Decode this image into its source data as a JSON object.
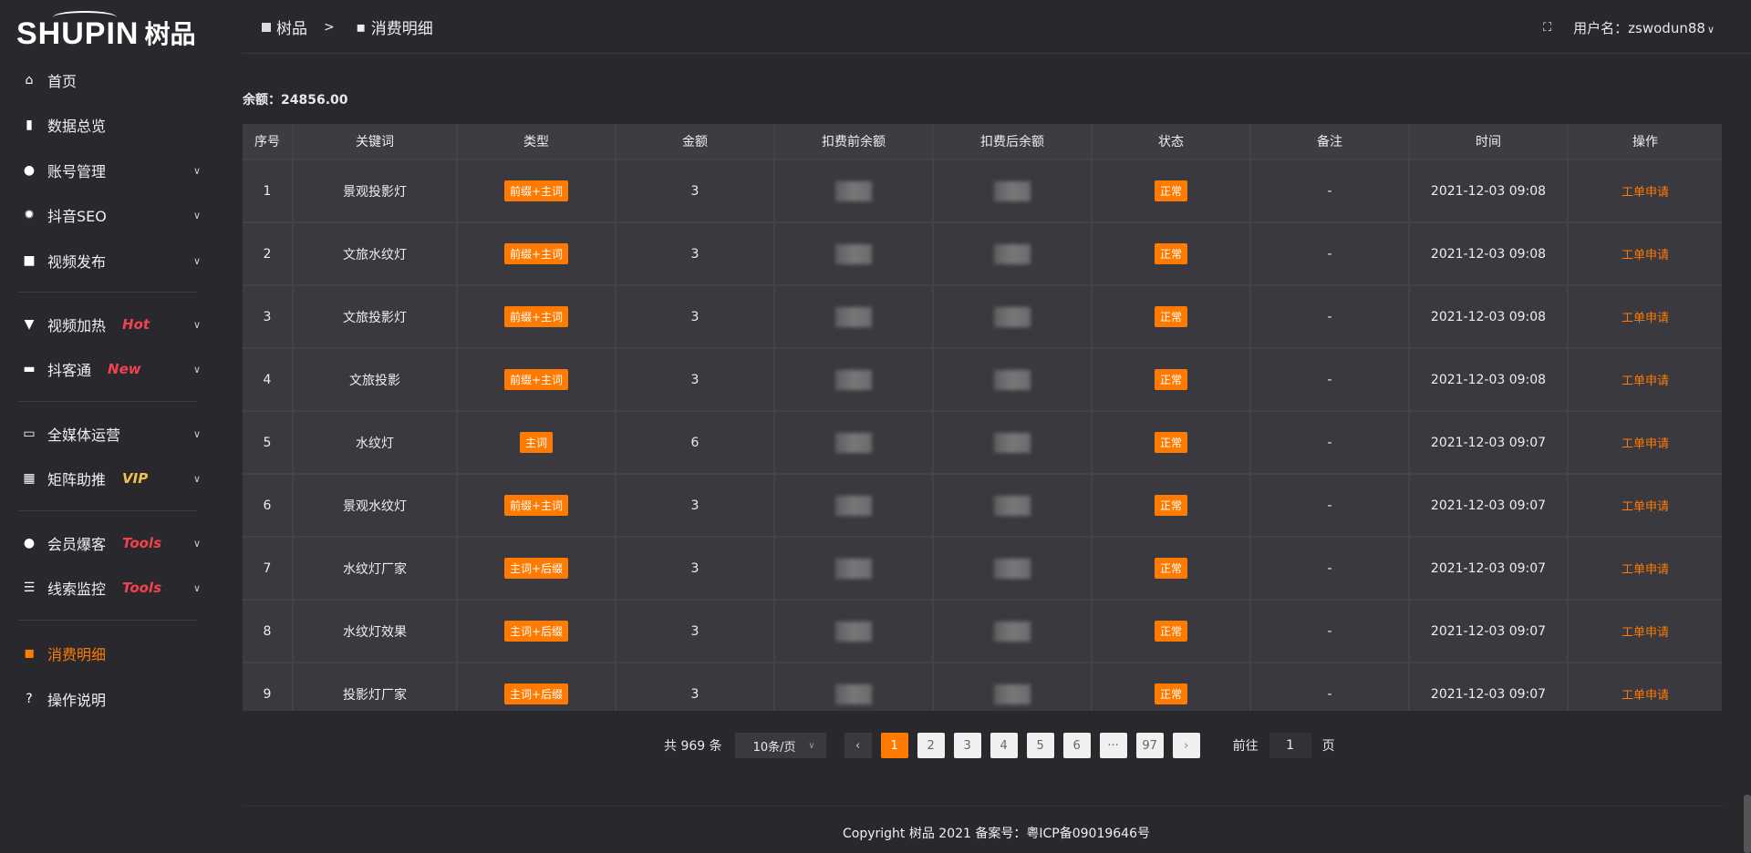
{
  "logo": {
    "en": "SHUPIN",
    "cn": "树品"
  },
  "sidebar": {
    "items": [
      {
        "label": "首页",
        "icon": "home-icon",
        "glyph": "⌂",
        "chevron": false
      },
      {
        "label": "数据总览",
        "icon": "bar-chart-icon",
        "glyph": "▮",
        "chevron": false
      },
      {
        "label": "账号管理",
        "icon": "user-icon",
        "glyph": "●",
        "chevron": true
      },
      {
        "label": "抖音SEO",
        "icon": "gear-icon",
        "glyph": "✹",
        "chevron": true
      },
      {
        "label": "视频发布",
        "icon": "video-icon",
        "glyph": "■",
        "chevron": true
      },
      {
        "label": "视频加热",
        "icon": "flame-board-icon",
        "glyph": "▼",
        "chevron": true,
        "tag": "Hot",
        "tag_color": "#f0434f"
      },
      {
        "label": "抖客通",
        "icon": "chat-icon",
        "glyph": "▬",
        "chevron": true,
        "tag": "New",
        "tag_color": "#f0434f"
      },
      {
        "label": "全媒体运营",
        "icon": "monitor-icon",
        "glyph": "▭",
        "chevron": true
      },
      {
        "label": "矩阵助推",
        "icon": "grid-icon",
        "glyph": "▦",
        "chevron": true,
        "tag": "VIP",
        "tag_color": "#f5c04a"
      },
      {
        "label": "会员爆客",
        "icon": "member-icon",
        "glyph": "●",
        "chevron": true,
        "tag": "Tools",
        "tag_color": "#f0434f"
      },
      {
        "label": "线索监控",
        "icon": "sliders-icon",
        "glyph": "☰",
        "chevron": true,
        "tag": "Tools",
        "tag_color": "#f0434f"
      },
      {
        "label": "消费明细",
        "icon": "wallet-icon",
        "glyph": "◼",
        "chevron": false,
        "active": true
      },
      {
        "label": "操作说明",
        "icon": "help-icon",
        "glyph": "?",
        "chevron": false
      }
    ]
  },
  "header": {
    "breadcrumb": [
      "树品",
      "消费明细"
    ],
    "breadcrumb_sep": ">",
    "user_label": "用户名：zswodun88",
    "chevron": "∨"
  },
  "balance": "余额：24856.00",
  "table": {
    "columns": [
      "序号",
      "关键词",
      "类型",
      "金额",
      "扣费前余额",
      "扣费后余额",
      "状态",
      "备注",
      "时间",
      "操作"
    ],
    "rows": [
      {
        "no": "1",
        "keyword": "景观投影灯",
        "type": "前缀+主词",
        "amount": "3",
        "status": "正常",
        "note": "-",
        "time": "2021-12-03 09:08",
        "action": "工单申请"
      },
      {
        "no": "2",
        "keyword": "文旅水纹灯",
        "type": "前缀+主词",
        "amount": "3",
        "status": "正常",
        "note": "-",
        "time": "2021-12-03 09:08",
        "action": "工单申请"
      },
      {
        "no": "3",
        "keyword": "文旅投影灯",
        "type": "前缀+主词",
        "amount": "3",
        "status": "正常",
        "note": "-",
        "time": "2021-12-03 09:08",
        "action": "工单申请"
      },
      {
        "no": "4",
        "keyword": "文旅投影",
        "type": "前缀+主词",
        "amount": "3",
        "status": "正常",
        "note": "-",
        "time": "2021-12-03 09:08",
        "action": "工单申请"
      },
      {
        "no": "5",
        "keyword": "水纹灯",
        "type": "主词",
        "amount": "6",
        "status": "正常",
        "note": "-",
        "time": "2021-12-03 09:07",
        "action": "工单申请"
      },
      {
        "no": "6",
        "keyword": "景观水纹灯",
        "type": "前缀+主词",
        "amount": "3",
        "status": "正常",
        "note": "-",
        "time": "2021-12-03 09:07",
        "action": "工单申请"
      },
      {
        "no": "7",
        "keyword": "水纹灯厂家",
        "type": "主词+后缀",
        "amount": "3",
        "status": "正常",
        "note": "-",
        "time": "2021-12-03 09:07",
        "action": "工单申请"
      },
      {
        "no": "8",
        "keyword": "水纹灯效果",
        "type": "主词+后缀",
        "amount": "3",
        "status": "正常",
        "note": "-",
        "time": "2021-12-03 09:07",
        "action": "工单申请"
      },
      {
        "no": "9",
        "keyword": "投影灯厂家",
        "type": "主词+后缀",
        "amount": "3",
        "status": "正常",
        "note": "-",
        "time": "2021-12-03 09:07",
        "action": "工单申请"
      }
    ]
  },
  "pagination": {
    "total": "共 969 条",
    "page_size": "10条/页",
    "pages": [
      "1",
      "2",
      "3",
      "4",
      "5",
      "6",
      "···",
      "97"
    ],
    "current": "1",
    "goto_label": "前往",
    "goto_value": "1",
    "page_suffix": "页",
    "prev": "‹",
    "next": "›"
  },
  "footer": {
    "copyright": "Copyright 树品 2021 备案号：粤ICP备09019646号"
  },
  "colors": {
    "accent": "#ff7a00",
    "background": "#29282d",
    "table": "#3a393f"
  }
}
